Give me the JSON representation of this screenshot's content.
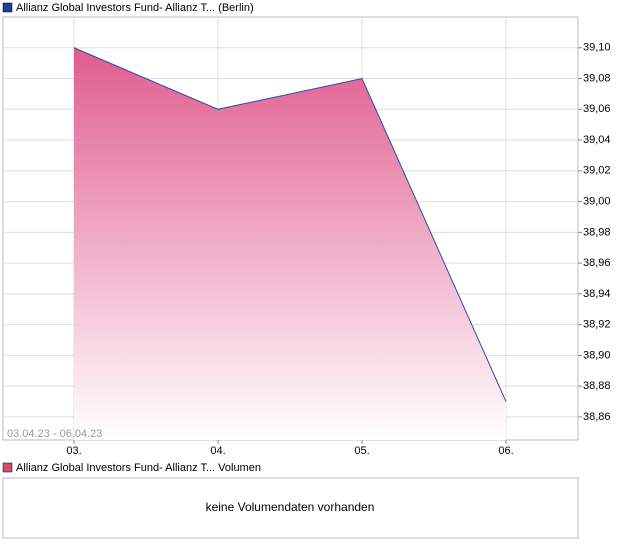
{
  "chart_data": {
    "type": "area",
    "legend": "Allianz Global Investors Fund- Allianz T... (Berlin)",
    "legend_color": "#1f3f8f",
    "date_range": "03.04.23 - 06.04.23",
    "categories": [
      "03.",
      "04.",
      "05.",
      "06."
    ],
    "series": [
      {
        "name": "Allianz Global Investors Fund- Allianz T... (Berlin)",
        "color": "#2a4aa8",
        "fill": "#e05c8e",
        "values": [
          39.1,
          39.06,
          39.08,
          38.87
        ]
      }
    ],
    "ylim": [
      38.845,
      39.12
    ],
    "yticks": [
      {
        "value": 38.86,
        "label": "38,86"
      },
      {
        "value": 38.88,
        "label": "38,88"
      },
      {
        "value": 38.9,
        "label": "38,90"
      },
      {
        "value": 38.92,
        "label": "38,92"
      },
      {
        "value": 38.94,
        "label": "38,94"
      },
      {
        "value": 38.96,
        "label": "38,96"
      },
      {
        "value": 38.98,
        "label": "38,98"
      },
      {
        "value": 39.0,
        "label": "39,00"
      },
      {
        "value": 39.02,
        "label": "39,02"
      },
      {
        "value": 39.04,
        "label": "39,04"
      },
      {
        "value": 39.06,
        "label": "39,06"
      },
      {
        "value": 39.08,
        "label": "39,08"
      },
      {
        "value": 39.1,
        "label": "39,10"
      }
    ],
    "grid": true
  },
  "volume_panel": {
    "legend": "Allianz Global Investors Fund- Allianz T... Volumen",
    "legend_color": "#d0506e",
    "message": "keine Volumendaten vorhanden"
  }
}
